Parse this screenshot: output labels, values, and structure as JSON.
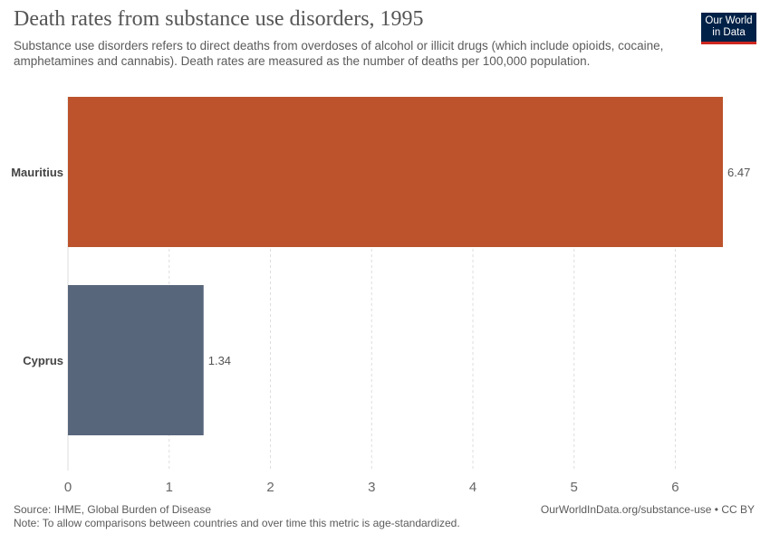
{
  "header": {
    "title": "Death rates from substance use disorders, 1995",
    "subtitle": "Substance use disorders refers to direct deaths from overdoses of alcohol or illicit drugs (which include opioids, cocaine, amphetamines and cannabis). Death rates are measured as the number of deaths per 100,000 population."
  },
  "logo": {
    "line1": "Our World",
    "line2": "in Data"
  },
  "footer": {
    "source": "Source: IHME, Global Burden of Disease",
    "note": "Note: To allow comparisons between countries and over time this metric is age-standardized.",
    "url": "OurWorldInData.org/substance-use • CC BY"
  },
  "colors": {
    "mauritius": "#bc532c",
    "cyprus": "#58667c",
    "grid": "#dddddd",
    "axis_text": "#666666",
    "label_text": "#444444"
  },
  "chart_data": {
    "type": "bar",
    "orientation": "horizontal",
    "categories": [
      "Mauritius",
      "Cyprus"
    ],
    "values": [
      6.47,
      1.34
    ],
    "value_labels": [
      "6.47",
      "1.34"
    ],
    "xlim": [
      0,
      6.5
    ],
    "xticks": [
      0,
      1,
      2,
      3,
      4,
      5,
      6
    ],
    "grid": true
  }
}
